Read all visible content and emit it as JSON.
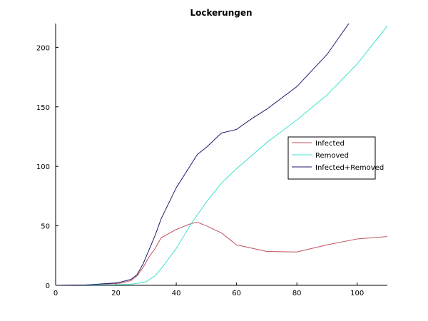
{
  "chart_data": {
    "type": "line",
    "title": "Lockerungen",
    "xlabel": "",
    "ylabel": "",
    "xlim": [
      0,
      110
    ],
    "ylim": [
      0,
      220
    ],
    "xticks": [
      0,
      20,
      40,
      60,
      80,
      100
    ],
    "yticks": [
      0,
      50,
      100,
      150,
      200
    ],
    "grid": false,
    "legend_position": "right-middle",
    "series": [
      {
        "name": "Infected",
        "color": "#c0505a",
        "x": [
          0,
          10,
          20,
          22,
          25,
          27,
          29,
          31,
          33,
          35,
          40,
          45,
          47,
          50,
          55,
          60,
          70,
          80,
          90,
          100,
          110
        ],
        "y": [
          0,
          0.3,
          1.5,
          2,
          4,
          8,
          15,
          24,
          31,
          40,
          47,
          52,
          53,
          50,
          44,
          34,
          28.5,
          28,
          34,
          39,
          41
        ]
      },
      {
        "name": "Removed",
        "color": "#40e0d0",
        "x": [
          0,
          20,
          25,
          28,
          30,
          33,
          35,
          40,
          45,
          50,
          55,
          60,
          70,
          80,
          90,
          100,
          110
        ],
        "y": [
          0,
          0.5,
          1,
          2,
          3,
          8,
          14,
          31,
          52,
          70,
          86,
          98,
          120,
          139,
          160,
          186,
          218
        ]
      },
      {
        "name": "Infected+Removed",
        "color": "#1a1a6e",
        "x": [
          0,
          10,
          20,
          22,
          25,
          27,
          29,
          31,
          33,
          35,
          40,
          45,
          47,
          50,
          55,
          60,
          65,
          70,
          80,
          90,
          97.5
        ],
        "y": [
          0,
          0.3,
          2,
          3,
          5,
          9,
          18,
          30,
          42,
          56,
          82,
          102,
          110,
          116,
          128,
          131,
          140,
          148,
          167,
          194,
          221
        ]
      }
    ],
    "colors": {
      "axis": "#000000",
      "legend_border": "#000000"
    }
  }
}
